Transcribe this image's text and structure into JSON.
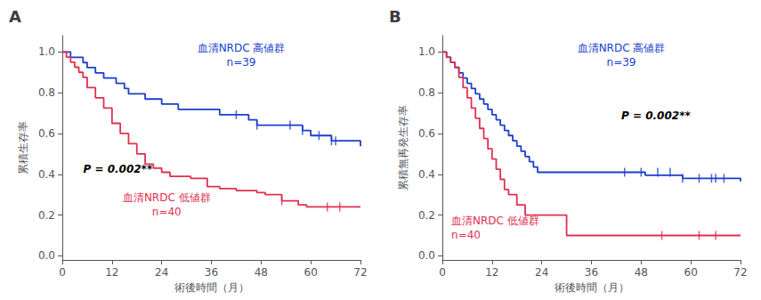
{
  "chart_data": [
    {
      "type": "line",
      "title": "A",
      "xlabel": "術後時間（月）",
      "ylabel": "累積生存率",
      "xlim": [
        0,
        72
      ],
      "ylim": [
        -0.02,
        1.08
      ],
      "xticks": [
        0,
        12,
        24,
        36,
        48,
        60,
        72
      ],
      "yticks": [
        {
          "value": 0.0,
          "label": "0.0"
        },
        0.2,
        0.4,
        0.6,
        0.8,
        {
          "value": 1.0,
          "label": "1.0"
        }
      ],
      "grid": false,
      "series": [
        {
          "type": "line",
          "line_style": "step",
          "color": "#1a3fcc",
          "x": [
            0,
            1,
            2,
            4,
            5,
            6,
            8,
            10,
            13,
            15,
            16,
            20,
            24,
            28,
            38,
            45,
            47,
            58,
            60,
            65,
            72
          ],
          "values": [
            1.0,
            1.0,
            0.974,
            0.974,
            0.948,
            0.923,
            0.897,
            0.872,
            0.846,
            0.821,
            0.795,
            0.769,
            0.744,
            0.718,
            0.692,
            0.667,
            0.641,
            0.615,
            0.59,
            0.564,
            0.538
          ]
        },
        {
          "type": "line",
          "line_style": "step",
          "color": "#e03050",
          "x": [
            0,
            1,
            2,
            3,
            4,
            5,
            6,
            8,
            10,
            12,
            14,
            16,
            18,
            20,
            22,
            24,
            26,
            31,
            35,
            38,
            42,
            47,
            49,
            53,
            57,
            59,
            72
          ],
          "values": [
            1.0,
            0.975,
            0.95,
            0.925,
            0.9,
            0.875,
            0.825,
            0.775,
            0.725,
            0.65,
            0.6,
            0.55,
            0.5,
            0.45,
            0.43,
            0.41,
            0.39,
            0.38,
            0.34,
            0.33,
            0.32,
            0.31,
            0.3,
            0.27,
            0.25,
            0.24,
            0.24
          ]
        },
        {
          "type": "scatter",
          "marker": "vline",
          "color": "#1a3fcc",
          "x": [
            42,
            47,
            55,
            58,
            62,
            65,
            66
          ],
          "values": [
            0.692,
            0.641,
            0.641,
            0.615,
            0.59,
            0.564,
            0.564
          ]
        },
        {
          "type": "scatter",
          "marker": "vline",
          "color": "#e03050",
          "x": [
            53,
            64,
            67
          ],
          "values": [
            0.27,
            0.24,
            0.24
          ]
        }
      ],
      "annotations": [
        {
          "text": "血清NRDC 高値群",
          "color": "#1a3fcc"
        },
        {
          "text": "n=39",
          "color": "#1a3fcc"
        },
        {
          "text": "血清NRDC 低値群",
          "color": "#e03050"
        },
        {
          "text": "n=40",
          "color": "#e03050"
        },
        {
          "text": "P = 0.002**"
        }
      ]
    },
    {
      "type": "line",
      "title": "B",
      "xlabel": "術後時間（月）",
      "ylabel": "累積無再発生存率",
      "xlim": [
        0,
        72
      ],
      "ylim": [
        -0.02,
        1.08
      ],
      "xticks": [
        0,
        12,
        24,
        36,
        48,
        60,
        72
      ],
      "yticks": [
        {
          "value": 0.0,
          "label": "0.0"
        },
        0.2,
        0.4,
        0.6,
        0.8,
        {
          "value": 1.0,
          "label": "1.0"
        }
      ],
      "grid": false,
      "series": [
        {
          "type": "line",
          "line_style": "step",
          "color": "#1a3fcc",
          "x": [
            0,
            1,
            2,
            3,
            4,
            5,
            6,
            7,
            8,
            9,
            10,
            11,
            12,
            13,
            14,
            15,
            16,
            17,
            18,
            19,
            20,
            21,
            22,
            23,
            49,
            58,
            72
          ],
          "values": [
            1.0,
            0.974,
            0.949,
            0.923,
            0.897,
            0.872,
            0.846,
            0.821,
            0.795,
            0.769,
            0.744,
            0.718,
            0.692,
            0.667,
            0.641,
            0.615,
            0.59,
            0.564,
            0.538,
            0.513,
            0.487,
            0.462,
            0.436,
            0.41,
            0.395,
            0.38,
            0.365
          ]
        },
        {
          "type": "line",
          "line_style": "step",
          "color": "#e03050",
          "x": [
            0,
            1,
            2,
            3,
            4,
            5,
            6,
            7,
            8,
            9,
            10,
            11,
            12,
            13,
            14,
            15,
            16,
            18,
            20,
            30,
            72
          ],
          "values": [
            1.0,
            0.975,
            0.95,
            0.925,
            0.875,
            0.825,
            0.775,
            0.725,
            0.675,
            0.625,
            0.575,
            0.525,
            0.475,
            0.425,
            0.375,
            0.325,
            0.3,
            0.25,
            0.2,
            0.1,
            0.1
          ]
        },
        {
          "type": "scatter",
          "marker": "vline",
          "color": "#1a3fcc",
          "x": [
            44,
            48,
            52,
            55,
            58,
            62,
            65,
            66,
            68
          ],
          "values": [
            0.41,
            0.41,
            0.41,
            0.41,
            0.38,
            0.38,
            0.38,
            0.38,
            0.38
          ]
        },
        {
          "type": "scatter",
          "marker": "vline",
          "color": "#e03050",
          "x": [
            53,
            62,
            66
          ],
          "values": [
            0.1,
            0.1,
            0.1
          ]
        }
      ],
      "annotations": [
        {
          "text": "血清NRDC 高値群",
          "color": "#1a3fcc"
        },
        {
          "text": "n=39",
          "color": "#1a3fcc"
        },
        {
          "text": "血清NRDC 低値群",
          "color": "#e03050"
        },
        {
          "text": "n=40",
          "color": "#e03050"
        },
        {
          "text": "P = 0.002**"
        }
      ]
    }
  ]
}
